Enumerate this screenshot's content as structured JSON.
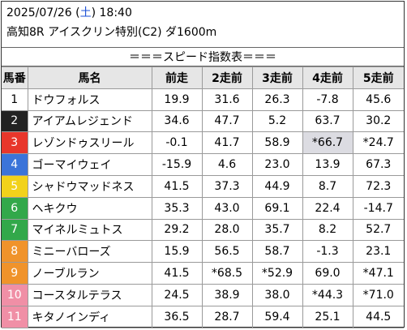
{
  "header": {
    "date_prefix": "2025/07/26 (",
    "day_of_week": "土",
    "date_suffix": ") 18:40",
    "race_title": "高知8R アイスクリン特別(C2) ダ1600m",
    "banner": "＝＝＝スピード指数表＝＝＝"
  },
  "table": {
    "headers": [
      "馬番",
      "馬名",
      "前走",
      "2走前",
      "3走前",
      "4走前",
      "5走前"
    ],
    "rows": [
      {
        "num": "1",
        "name": "ドウフォルス",
        "bg": "#ffffff",
        "fg": "#000000",
        "vals": [
          "19.9",
          "31.6",
          "26.3",
          "-7.8",
          "45.6"
        ]
      },
      {
        "num": "2",
        "name": "アイアムレジェンド",
        "bg": "#222222",
        "fg": "#ffffff",
        "vals": [
          "34.6",
          "47.7",
          "5.2",
          "63.7",
          "30.2"
        ]
      },
      {
        "num": "3",
        "name": "レゾンドゥスリール",
        "bg": "#e8362b",
        "fg": "#ffffff",
        "vals": [
          "-0.1",
          "41.7",
          "58.9",
          "*66.7",
          "*24.7"
        ],
        "hl": [
          3
        ]
      },
      {
        "num": "4",
        "name": "ゴーマイウェイ",
        "bg": "#3b74d9",
        "fg": "#ffffff",
        "vals": [
          "-15.9",
          "4.6",
          "23.0",
          "13.9",
          "67.3"
        ]
      },
      {
        "num": "5",
        "name": "シャドウマッドネス",
        "bg": "#f2d21b",
        "fg": "#ffffff",
        "vals": [
          "41.5",
          "37.3",
          "44.9",
          "8.7",
          "72.3"
        ]
      },
      {
        "num": "6",
        "name": "ヘキクウ",
        "bg": "#32a84a",
        "fg": "#ffffff",
        "vals": [
          "35.3",
          "43.0",
          "69.1",
          "22.4",
          "-14.7"
        ]
      },
      {
        "num": "7",
        "name": "マイネルミュトス",
        "bg": "#32a84a",
        "fg": "#ffffff",
        "vals": [
          "29.2",
          "28.0",
          "35.7",
          "8.2",
          "52.7"
        ]
      },
      {
        "num": "8",
        "name": "ミニーバローズ",
        "bg": "#f0932b",
        "fg": "#ffffff",
        "vals": [
          "15.9",
          "56.5",
          "58.7",
          "-1.3",
          "23.1"
        ]
      },
      {
        "num": "9",
        "name": "ノーブルラン",
        "bg": "#f0932b",
        "fg": "#ffffff",
        "vals": [
          "41.5",
          "*68.5",
          "*52.9",
          "69.0",
          "*47.1"
        ]
      },
      {
        "num": "10",
        "name": "コースタルテラス",
        "bg": "#f08fa6",
        "fg": "#ffffff",
        "vals": [
          "24.5",
          "38.9",
          "38.0",
          "*44.3",
          "*71.0"
        ]
      },
      {
        "num": "11",
        "name": "キタノインディ",
        "bg": "#f08fa6",
        "fg": "#ffffff",
        "vals": [
          "36.5",
          "28.7",
          "59.4",
          "25.1",
          "44.5"
        ]
      }
    ]
  }
}
